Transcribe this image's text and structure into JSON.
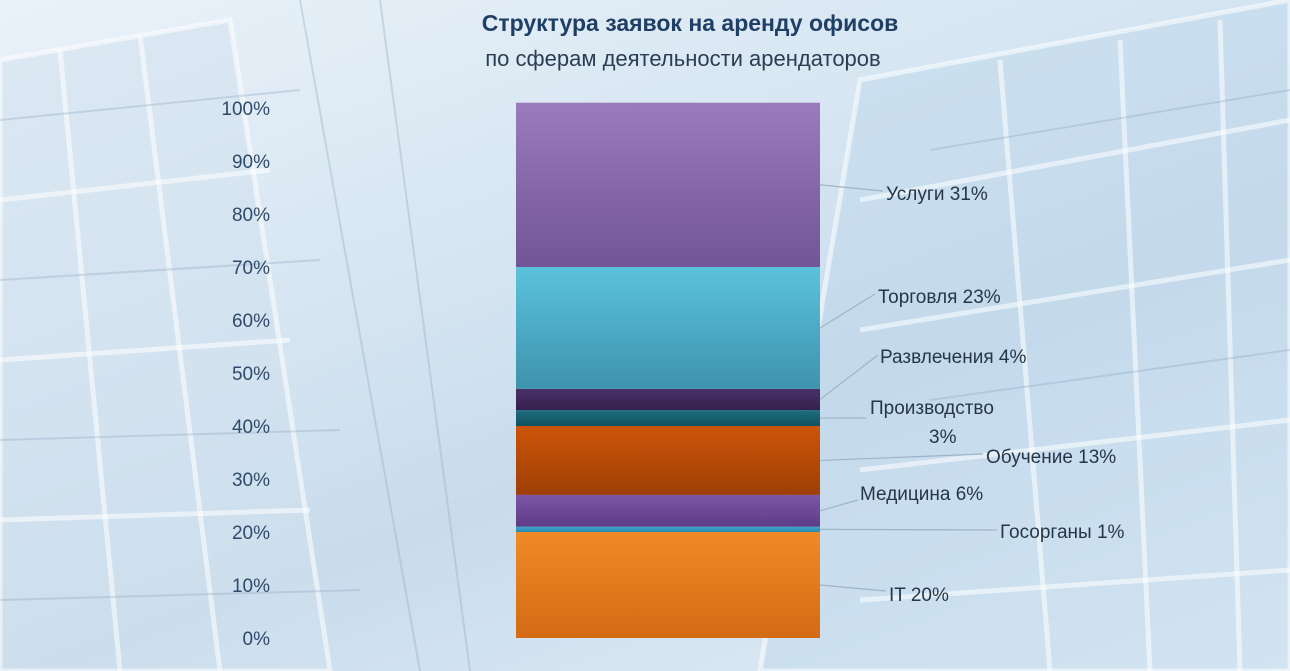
{
  "header": {
    "title": "Структура заявок на аренду офисов",
    "subtitle": "по сферам деятельности арендаторов"
  },
  "chart_data": {
    "type": "bar",
    "stacked": true,
    "title": "Структура заявок на аренду офисов",
    "subtitle": "по сферам деятельности арендаторов",
    "ylim": [
      0,
      100
    ],
    "y_ticks": [
      "0%",
      "10%",
      "20%",
      "30%",
      "40%",
      "50%",
      "60%",
      "70%",
      "80%",
      "90%",
      "100%"
    ],
    "grid": false,
    "series": [
      {
        "name": "IT",
        "value": 20,
        "label": "IT 20%",
        "color": "#f08a26",
        "dark": "#d36b14"
      },
      {
        "name": "Госорганы",
        "value": 1,
        "label": "Госорганы 1%",
        "color": "#3aa6cf",
        "dark": "#2a88ad"
      },
      {
        "name": "Медицина",
        "value": 6,
        "label": "Медицина 6%",
        "color": "#7d55a8",
        "dark": "#5e3c86"
      },
      {
        "name": "Обучение",
        "value": 13,
        "label": "Обучение 13%",
        "color": "#cc5508",
        "dark": "#9e3e05"
      },
      {
        "name": "Производство",
        "value": 3,
        "label_lines": [
          "Производство",
          "3%"
        ],
        "color": "#1d6f80",
        "dark": "#12505e"
      },
      {
        "name": "Развлечения",
        "value": 4,
        "label": "Развлечения 4%",
        "color": "#4a3068",
        "dark": "#34204c"
      },
      {
        "name": "Торговля",
        "value": 23,
        "label": "Торговля 23%",
        "color": "#5bc2dc",
        "dark": "#3e93ad"
      },
      {
        "name": "Услуги",
        "value": 31,
        "label": "Услуги 31%",
        "color": "#9a7bbd",
        "dark": "#725596"
      }
    ]
  }
}
